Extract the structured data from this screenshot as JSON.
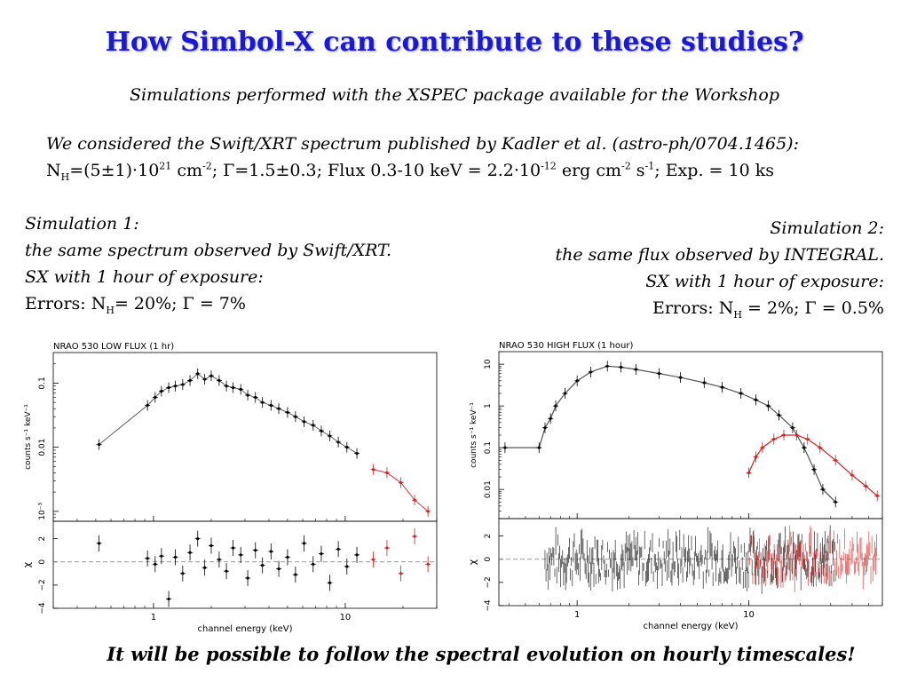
{
  "title": "How Simbol-X can contribute to these studies?",
  "subtitle": "Simulations performed with the XSPEC package available for the Workshop",
  "intro": {
    "line1": "We considered the Swift/XRT spectrum published by Kadler et al. (astro-ph/0704.1465):",
    "nh_label": "N",
    "nh_sub": "H",
    "nh_value": "=(5±1)·10",
    "nh_exp": "21",
    "cm_text": " cm",
    "cm_exp": "-2",
    "gamma_flux": "; Γ=1.5±0.3; Flux 0.3-10 keV = 2.2·10",
    "flux_exp": "-12",
    "erg_text": " erg cm",
    "erg_exp": "-2",
    "s_text": " s",
    "s_exp": "-1",
    "exp_text": "; Exp. = 10 ks"
  },
  "simulation1": {
    "heading": "Simulation 1:",
    "line2": "the same spectrum observed by Swift/XRT.",
    "line3": "SX with 1 hour of exposure:",
    "errors_prefix": "Errors: N",
    "errors_sub": "H",
    "errors_suffix": "= 20%; Γ = 7%"
  },
  "simulation2": {
    "heading": "Simulation 2:",
    "line2": "the same flux observed by INTEGRAL.",
    "line3": "SX with 1 hour of exposure:",
    "errors_prefix": "Errors: N",
    "errors_sub": "H",
    "errors_suffix": " = 2%; Γ = 0.5%"
  },
  "conclusion": "It will be possible to follow the spectral evolution on hourly timescales!",
  "colors": {
    "title": "#1a1ad6",
    "xrt_data": "#000000",
    "sx_data": "#d42020"
  },
  "chart_data": [
    {
      "type": "scatter",
      "title": "NRAO 530 LOW FLUX (1 hr)",
      "xlabel": "channel energy (keV)",
      "ylabel": "counts s⁻¹ keV⁻¹",
      "ylabel_residual": "χ",
      "xscale": "log",
      "yscale": "log",
      "xlim": [
        0.3,
        30
      ],
      "ylim": [
        0.0007,
        0.3
      ],
      "residual_ylim": [
        -4,
        3.5
      ],
      "x_ticks": [
        "1",
        "10"
      ],
      "y_ticks": [
        "0.1",
        "0.01",
        "10⁻³"
      ],
      "residual_ticks": [
        "2",
        "0",
        "−2",
        "−4"
      ],
      "series": [
        {
          "color": "black",
          "points": [
            [
              0.52,
              0.011
            ],
            [
              0.93,
              0.045
            ],
            [
              1.02,
              0.06
            ],
            [
              1.1,
              0.075
            ],
            [
              1.2,
              0.085
            ],
            [
              1.3,
              0.09
            ],
            [
              1.42,
              0.095
            ],
            [
              1.55,
              0.11
            ],
            [
              1.7,
              0.14
            ],
            [
              1.85,
              0.115
            ],
            [
              2.0,
              0.13
            ],
            [
              2.2,
              0.11
            ],
            [
              2.4,
              0.09
            ],
            [
              2.6,
              0.085
            ],
            [
              2.85,
              0.08
            ],
            [
              3.1,
              0.065
            ],
            [
              3.4,
              0.06
            ],
            [
              3.7,
              0.05
            ],
            [
              4.1,
              0.045
            ],
            [
              4.5,
              0.04
            ],
            [
              5.0,
              0.035
            ],
            [
              5.5,
              0.03
            ],
            [
              6.1,
              0.025
            ],
            [
              6.8,
              0.022
            ],
            [
              7.5,
              0.018
            ],
            [
              8.3,
              0.015
            ],
            [
              9.2,
              0.012
            ],
            [
              10.2,
              0.01
            ],
            [
              11.5,
              0.008
            ]
          ],
          "residuals": [
            [
              0.52,
              1.6
            ],
            [
              0.93,
              0.3
            ],
            [
              1.02,
              -0.2
            ],
            [
              1.1,
              0.5
            ],
            [
              1.2,
              -3.2
            ],
            [
              1.3,
              0.4
            ],
            [
              1.42,
              -1.0
            ],
            [
              1.55,
              0.8
            ],
            [
              1.7,
              2.0
            ],
            [
              1.85,
              -0.5
            ],
            [
              2.0,
              1.4
            ],
            [
              2.2,
              0.2
            ],
            [
              2.4,
              -0.8
            ],
            [
              2.6,
              1.2
            ],
            [
              2.85,
              0.6
            ],
            [
              3.1,
              -1.4
            ],
            [
              3.4,
              1.0
            ],
            [
              3.7,
              -0.3
            ],
            [
              4.1,
              0.9
            ],
            [
              4.5,
              -0.6
            ],
            [
              5.0,
              0.4
            ],
            [
              5.5,
              -1.1
            ],
            [
              6.1,
              1.6
            ],
            [
              6.8,
              -0.2
            ],
            [
              7.5,
              0.7
            ],
            [
              8.3,
              -1.8
            ],
            [
              9.2,
              1.1
            ],
            [
              10.2,
              -0.4
            ],
            [
              11.5,
              0.6
            ]
          ]
        },
        {
          "color": "red",
          "points": [
            [
              14,
              0.0045
            ],
            [
              16.5,
              0.004
            ],
            [
              19.5,
              0.0028
            ],
            [
              23,
              0.0015
            ],
            [
              27,
              0.001
            ]
          ],
          "residuals": [
            [
              14,
              0.2
            ],
            [
              16.5,
              1.2
            ],
            [
              19.5,
              -1.0
            ],
            [
              23,
              2.2
            ],
            [
              27,
              -0.2
            ]
          ]
        }
      ]
    },
    {
      "type": "scatter",
      "title": "NRAO 530 HIGH FLUX (1 hour)",
      "xlabel": "channel energy (keV)",
      "ylabel": "counts s⁻¹ keV⁻¹",
      "ylabel_residual": "χ",
      "xscale": "log",
      "yscale": "log",
      "xlim": [
        0.35,
        60
      ],
      "ylim": [
        0.002,
        20
      ],
      "residual_ylim": [
        -4,
        3.5
      ],
      "x_ticks": [
        "1",
        "10"
      ],
      "y_ticks": [
        "10",
        "1",
        "0.1",
        "0.01"
      ],
      "residual_ticks": [
        "2",
        "0",
        "−2",
        "−4"
      ],
      "series": [
        {
          "color": "black",
          "points": [
            [
              0.38,
              0.1
            ],
            [
              0.6,
              0.1
            ],
            [
              0.65,
              0.3
            ],
            [
              0.7,
              0.5
            ],
            [
              0.75,
              1.0
            ],
            [
              0.85,
              2.0
            ],
            [
              1.0,
              4.0
            ],
            [
              1.2,
              6.5
            ],
            [
              1.5,
              9.0
            ],
            [
              1.8,
              8.5
            ],
            [
              2.2,
              7.5
            ],
            [
              3.0,
              6.0
            ],
            [
              4.0,
              4.8
            ],
            [
              5.5,
              3.6
            ],
            [
              7.0,
              2.8
            ],
            [
              9.0,
              2.0
            ],
            [
              11.0,
              1.4
            ],
            [
              13.0,
              1.0
            ],
            [
              15.0,
              0.6
            ],
            [
              18.0,
              0.3
            ],
            [
              21.0,
              0.1
            ],
            [
              24.0,
              0.03
            ],
            [
              27.0,
              0.01
            ],
            [
              32.0,
              0.005
            ]
          ]
        },
        {
          "color": "red",
          "points": [
            [
              10.0,
              0.025
            ],
            [
              11.0,
              0.06
            ],
            [
              12.0,
              0.1
            ],
            [
              14.0,
              0.16
            ],
            [
              16.0,
              0.2
            ],
            [
              19.0,
              0.2
            ],
            [
              22.0,
              0.16
            ],
            [
              26.0,
              0.1
            ],
            [
              32.0,
              0.05
            ],
            [
              40.0,
              0.022
            ],
            [
              48.0,
              0.012
            ],
            [
              56.0,
              0.007
            ]
          ]
        }
      ]
    }
  ]
}
